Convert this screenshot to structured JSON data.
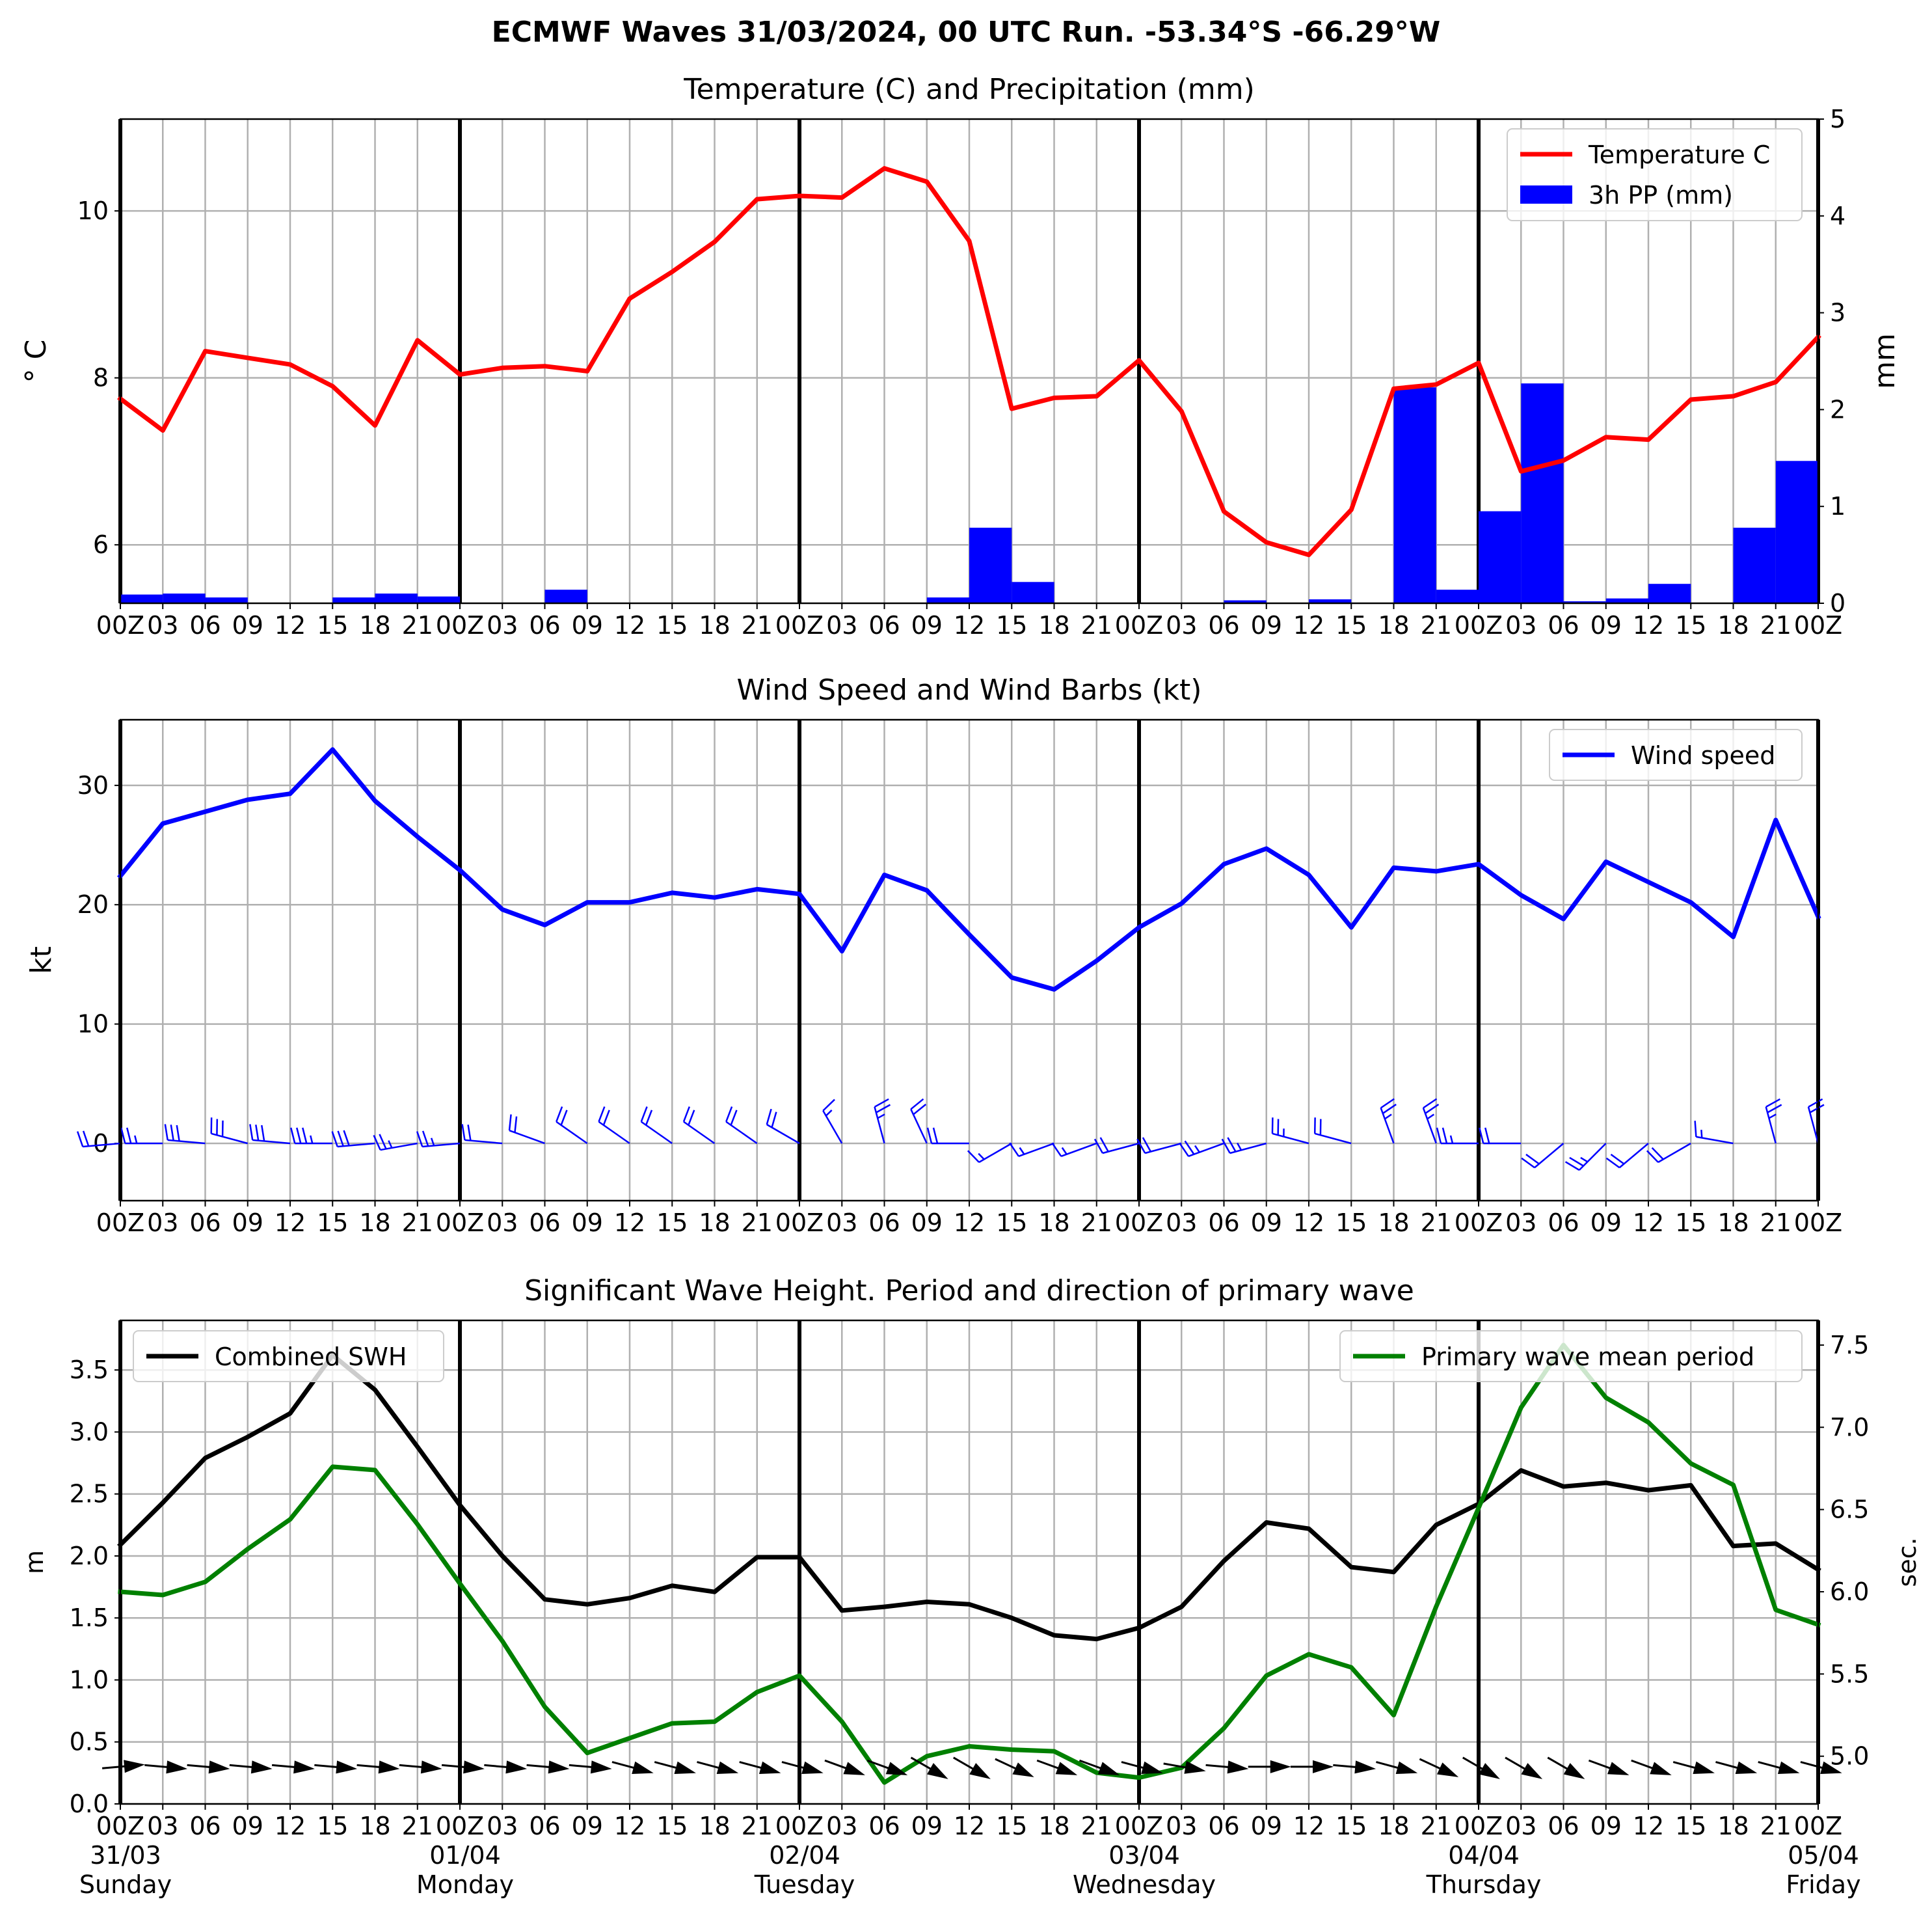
{
  "figure": {
    "title": "ECMWF Waves 31/03/2024, 00 UTC Run. -53.34°S -66.29°W"
  },
  "hour_ticks": [
    "00Z",
    "03",
    "06",
    "09",
    "12",
    "15",
    "18",
    "21",
    "00Z",
    "03",
    "06",
    "09",
    "12",
    "15",
    "18",
    "21",
    "00Z",
    "03",
    "06",
    "09",
    "12",
    "15",
    "18",
    "21",
    "00Z",
    "03",
    "06",
    "09",
    "12",
    "15",
    "18",
    "21",
    "00Z",
    "03",
    "06",
    "09",
    "12",
    "15",
    "18",
    "21",
    "00Z"
  ],
  "day_labels": [
    {
      "date": "31/03",
      "day": "Sunday"
    },
    {
      "date": "01/04",
      "day": "Monday"
    },
    {
      "date": "02/04",
      "day": "Tuesday"
    },
    {
      "date": "03/04",
      "day": "Wednesday"
    },
    {
      "date": "04/04",
      "day": "Thursday"
    },
    {
      "date": "05/04",
      "day": "Friday"
    }
  ],
  "chart_data": [
    {
      "type": "line",
      "title": "Temperature (C) and Precipitation (mm)",
      "x_unit": "hours since 31/03 00Z",
      "xlim": [
        0,
        120
      ],
      "ylabel": "$^\\circ$C",
      "ylabel_text": "° C",
      "ylim": [
        5.3,
        11.1
      ],
      "yticks": [
        6,
        8,
        10
      ],
      "y2label": "mm",
      "y2lim": [
        0,
        5
      ],
      "y2ticks": [
        0,
        1,
        2,
        3,
        4,
        5
      ],
      "grid": true,
      "legend_position": "top-right",
      "series": [
        {
          "name": "Temperature C",
          "color": "#ff0000",
          "kind": "line",
          "x": [
            0,
            3,
            6,
            9,
            12,
            15,
            18,
            21,
            24,
            27,
            30,
            33,
            36,
            39,
            42,
            45,
            48,
            51,
            54,
            57,
            60,
            63,
            66,
            69,
            72,
            75,
            78,
            81,
            84,
            87,
            90,
            93,
            96,
            99,
            102,
            105,
            108,
            111,
            114,
            117,
            120
          ],
          "values": [
            7.75,
            7.37,
            8.32,
            8.24,
            8.16,
            7.9,
            7.43,
            8.45,
            8.04,
            8.12,
            8.14,
            8.08,
            8.95,
            9.27,
            9.63,
            10.14,
            10.18,
            10.16,
            10.51,
            10.35,
            9.64,
            7.63,
            7.76,
            7.78,
            8.21,
            7.6,
            6.4,
            6.03,
            5.88,
            6.42,
            7.87,
            7.92,
            8.18,
            6.88,
            7.01,
            7.29,
            7.26,
            7.74,
            7.78,
            7.95,
            8.49
          ]
        },
        {
          "name": "3h PP (mm)",
          "color": "#0000ff",
          "kind": "bar",
          "x": [
            1.5,
            4.5,
            7.5,
            10.5,
            13.5,
            16.5,
            19.5,
            22.5,
            25.5,
            28.5,
            31.5,
            34.5,
            37.5,
            40.5,
            43.5,
            46.5,
            49.5,
            52.5,
            55.5,
            58.5,
            61.5,
            64.5,
            67.5,
            70.5,
            73.5,
            76.5,
            79.5,
            82.5,
            85.5,
            88.5,
            91.5,
            94.5,
            97.5,
            100.5,
            103.5,
            106.5,
            109.5,
            112.5,
            115.5,
            118.5
          ],
          "values": [
            0.09,
            0.1,
            0.06,
            0,
            0,
            0.06,
            0.1,
            0.07,
            0,
            0,
            0.14,
            0,
            0,
            0,
            0,
            0,
            0,
            0,
            0,
            0.06,
            0.78,
            0.22,
            0,
            0,
            0,
            0,
            0.03,
            0,
            0.04,
            0,
            2.23,
            0.14,
            0.95,
            2.27,
            0.02,
            0.05,
            0.2,
            0,
            0.78,
            1.47
          ]
        }
      ]
    },
    {
      "type": "line",
      "title": "Wind Speed and Wind Barbs (kt)",
      "x_unit": "hours since 31/03 00Z",
      "xlim": [
        0,
        120
      ],
      "ylabel": "kt",
      "ylim": [
        -4.8,
        35.5
      ],
      "yticks": [
        0,
        10,
        20,
        30
      ],
      "grid": true,
      "legend_position": "top-right",
      "series": [
        {
          "name": "Wind speed",
          "color": "#0000ff",
          "x": [
            0,
            3,
            6,
            9,
            12,
            15,
            18,
            21,
            24,
            27,
            30,
            33,
            36,
            39,
            42,
            45,
            48,
            51,
            54,
            57,
            60,
            63,
            66,
            69,
            72,
            75,
            78,
            81,
            84,
            87,
            90,
            93,
            96,
            99,
            102,
            105,
            108,
            111,
            114,
            117,
            120
          ],
          "values": [
            22.4,
            26.8,
            27.8,
            28.8,
            29.3,
            33.0,
            28.7,
            25.7,
            22.9,
            19.6,
            18.3,
            20.2,
            20.2,
            21.0,
            20.6,
            21.3,
            20.9,
            16.1,
            22.5,
            21.2,
            17.5,
            13.9,
            12.9,
            15.3,
            18.1,
            20.1,
            23.4,
            24.7,
            22.5,
            18.1,
            23.1,
            22.8,
            23.4,
            20.8,
            18.8,
            23.6,
            21.9,
            20.2,
            17.3,
            27.1,
            19.0
          ]
        },
        {
          "name": "wind barbs (direction)",
          "kind": "barbs",
          "x": [
            0,
            3,
            6,
            9,
            12,
            15,
            18,
            21,
            24,
            27,
            30,
            33,
            36,
            39,
            42,
            45,
            48,
            51,
            54,
            57,
            60,
            63,
            66,
            69,
            72,
            75,
            78,
            81,
            84,
            87,
            90,
            93,
            96,
            99,
            102,
            105,
            108,
            111,
            114,
            117,
            120
          ],
          "direction_deg_from": [
            265,
            270,
            275,
            285,
            275,
            270,
            265,
            260,
            265,
            275,
            290,
            305,
            305,
            305,
            305,
            305,
            300,
            330,
            345,
            335,
            270,
            240,
            250,
            250,
            255,
            255,
            250,
            255,
            285,
            285,
            340,
            340,
            270,
            270,
            230,
            225,
            230,
            240,
            280,
            345,
            345
          ]
        }
      ]
    },
    {
      "type": "line",
      "title": "Significant Wave Height. Period and direction of primary wave",
      "x_unit": "hours since 31/03 00Z",
      "xlim": [
        0,
        120
      ],
      "ylabel": "m",
      "ylim": [
        0,
        3.9
      ],
      "yticks": [
        0.0,
        0.5,
        1.0,
        1.5,
        2.0,
        2.5,
        3.0,
        3.5
      ],
      "y2label": "sec.",
      "y2lim": [
        4.71,
        7.65
      ],
      "y2ticks": [
        5.0,
        5.5,
        6.0,
        6.5,
        7.0,
        7.5
      ],
      "grid": true,
      "legend_positions": [
        "top-left",
        "top-right"
      ],
      "series": [
        {
          "name": "Combined SWH",
          "color": "#000000",
          "axis": "left",
          "x": [
            0,
            3,
            6,
            9,
            12,
            15,
            18,
            21,
            24,
            27,
            30,
            33,
            36,
            39,
            42,
            45,
            48,
            51,
            54,
            57,
            60,
            63,
            66,
            69,
            72,
            75,
            78,
            81,
            84,
            87,
            90,
            93,
            96,
            99,
            102,
            105,
            108,
            111,
            114,
            117,
            120
          ],
          "values": [
            2.09,
            2.43,
            2.79,
            2.96,
            3.15,
            3.62,
            3.34,
            2.88,
            2.41,
            2.0,
            1.65,
            1.61,
            1.66,
            1.76,
            1.71,
            1.99,
            1.99,
            1.56,
            1.59,
            1.63,
            1.61,
            1.5,
            1.36,
            1.33,
            1.42,
            1.59,
            1.96,
            2.27,
            2.22,
            1.91,
            1.87,
            2.25,
            2.42,
            2.69,
            2.56,
            2.59,
            2.53,
            2.57,
            2.08,
            2.1,
            1.89
          ]
        },
        {
          "name": "Primary wave mean period",
          "color": "#008000",
          "axis": "right",
          "x": [
            0,
            3,
            6,
            9,
            12,
            15,
            18,
            21,
            24,
            27,
            30,
            33,
            36,
            39,
            42,
            45,
            48,
            51,
            54,
            57,
            60,
            63,
            66,
            69,
            72,
            75,
            78,
            81,
            84,
            87,
            90,
            93,
            96,
            99,
            102,
            105,
            108,
            111,
            114,
            117,
            120
          ],
          "values": [
            6.0,
            5.98,
            6.06,
            6.26,
            6.44,
            6.76,
            6.74,
            6.41,
            6.05,
            5.7,
            5.3,
            5.02,
            5.11,
            5.2,
            5.21,
            5.39,
            5.49,
            5.21,
            4.84,
            5.0,
            5.06,
            5.04,
            5.03,
            4.9,
            4.87,
            4.93,
            5.17,
            5.49,
            5.62,
            5.54,
            5.25,
            5.91,
            6.51,
            7.12,
            7.5,
            7.18,
            7.03,
            6.78,
            6.65,
            5.89,
            5.8
          ]
        },
        {
          "name": "primary wave direction",
          "kind": "arrows",
          "x": [
            0,
            3,
            6,
            9,
            12,
            15,
            18,
            21,
            24,
            27,
            30,
            33,
            36,
            39,
            42,
            45,
            48,
            51,
            54,
            57,
            60,
            63,
            66,
            69,
            72,
            75,
            78,
            81,
            84,
            87,
            90,
            93,
            96,
            99,
            102,
            105,
            108,
            111,
            114,
            117,
            120
          ],
          "direction_deg_to": [
            85,
            95,
            95,
            95,
            95,
            95,
            95,
            95,
            95,
            95,
            95,
            95,
            105,
            105,
            105,
            105,
            105,
            110,
            110,
            120,
            120,
            115,
            110,
            110,
            105,
            100,
            95,
            90,
            90,
            95,
            105,
            115,
            120,
            120,
            120,
            110,
            110,
            105,
            105,
            105,
            105
          ]
        }
      ]
    }
  ]
}
